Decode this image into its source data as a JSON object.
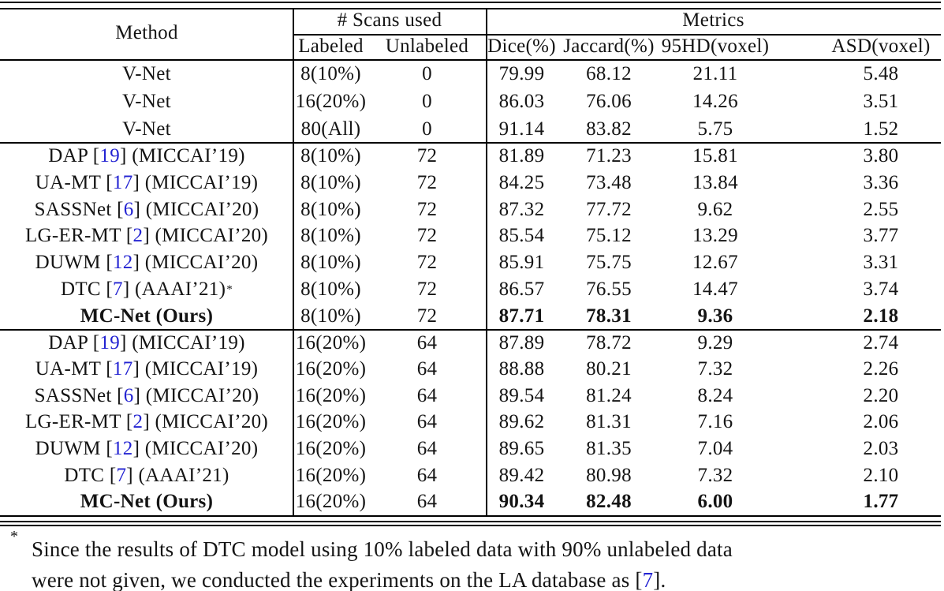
{
  "colors": {
    "citation_link": "#2323d2",
    "text": "#141414",
    "rule": "#000000",
    "background": "#ffffff"
  },
  "table": {
    "header": {
      "method": "Method",
      "scans_group": "# Scans used",
      "metrics_group": "Metrics",
      "labeled": "Labeled",
      "unlabeled": "Unlabeled",
      "dice": "Dice(%)",
      "jaccard": "Jaccard(%)",
      "hd95": "95HD(voxel)",
      "asd": "ASD(voxel)"
    },
    "groups": [
      {
        "rows": [
          {
            "m_pre": "V-Net",
            "m_cite": "",
            "m_post": "",
            "m_sup": "",
            "bold": false,
            "labeled": "8(10%)",
            "unlabeled": "0",
            "dice": "79.99",
            "jaccard": "68.12",
            "hd95": "21.11",
            "asd": "5.48"
          },
          {
            "m_pre": "V-Net",
            "m_cite": "",
            "m_post": "",
            "m_sup": "",
            "bold": false,
            "labeled": "16(20%)",
            "unlabeled": "0",
            "dice": "86.03",
            "jaccard": "76.06",
            "hd95": "14.26",
            "asd": "3.51"
          },
          {
            "m_pre": "V-Net",
            "m_cite": "",
            "m_post": "",
            "m_sup": "",
            "bold": false,
            "labeled": "80(All)",
            "unlabeled": "0",
            "dice": "91.14",
            "jaccard": "83.82",
            "hd95": "5.75",
            "asd": "1.52"
          }
        ]
      },
      {
        "rows": [
          {
            "m_pre": "DAP [",
            "m_cite": "19",
            "m_post": "] (MICCAI’19)",
            "m_sup": "",
            "bold": false,
            "labeled": "8(10%)",
            "unlabeled": "72",
            "dice": "81.89",
            "jaccard": "71.23",
            "hd95": "15.81",
            "asd": "3.80"
          },
          {
            "m_pre": "UA-MT [",
            "m_cite": "17",
            "m_post": "] (MICCAI’19)",
            "m_sup": "",
            "bold": false,
            "labeled": "8(10%)",
            "unlabeled": "72",
            "dice": "84.25",
            "jaccard": "73.48",
            "hd95": "13.84",
            "asd": "3.36"
          },
          {
            "m_pre": "SASSNet [",
            "m_cite": "6",
            "m_post": "] (MICCAI’20)",
            "m_sup": "",
            "bold": false,
            "labeled": "8(10%)",
            "unlabeled": "72",
            "dice": "87.32",
            "jaccard": "77.72",
            "hd95": "9.62",
            "asd": "2.55"
          },
          {
            "m_pre": "LG-ER-MT [",
            "m_cite": "2",
            "m_post": "] (MICCAI’20)",
            "m_sup": "",
            "bold": false,
            "labeled": "8(10%)",
            "unlabeled": "72",
            "dice": "85.54",
            "jaccard": "75.12",
            "hd95": "13.29",
            "asd": "3.77"
          },
          {
            "m_pre": "DUWM [",
            "m_cite": "12",
            "m_post": "] (MICCAI’20)",
            "m_sup": "",
            "bold": false,
            "labeled": "8(10%)",
            "unlabeled": "72",
            "dice": "85.91",
            "jaccard": "75.75",
            "hd95": "12.67",
            "asd": "3.31"
          },
          {
            "m_pre": "DTC [",
            "m_cite": "7",
            "m_post": "] (AAAI’21)",
            "m_sup": "*",
            "bold": false,
            "labeled": "8(10%)",
            "unlabeled": "72",
            "dice": "86.57",
            "jaccard": "76.55",
            "hd95": "14.47",
            "asd": "3.74"
          },
          {
            "m_pre": "MC-Net (Ours)",
            "m_cite": "",
            "m_post": "",
            "m_sup": "",
            "bold": true,
            "labeled": "8(10%)",
            "unlabeled": "72",
            "dice": "87.71",
            "jaccard": "78.31",
            "hd95": "9.36",
            "asd": "2.18"
          }
        ]
      },
      {
        "rows": [
          {
            "m_pre": "DAP [",
            "m_cite": "19",
            "m_post": "] (MICCAI’19)",
            "m_sup": "",
            "bold": false,
            "labeled": "16(20%)",
            "unlabeled": "64",
            "dice": "87.89",
            "jaccard": "78.72",
            "hd95": "9.29",
            "asd": "2.74"
          },
          {
            "m_pre": "UA-MT [",
            "m_cite": "17",
            "m_post": "] (MICCAI’19)",
            "m_sup": "",
            "bold": false,
            "labeled": "16(20%)",
            "unlabeled": "64",
            "dice": "88.88",
            "jaccard": "80.21",
            "hd95": "7.32",
            "asd": "2.26"
          },
          {
            "m_pre": "SASSNet [",
            "m_cite": "6",
            "m_post": "] (MICCAI’20)",
            "m_sup": "",
            "bold": false,
            "labeled": "16(20%)",
            "unlabeled": "64",
            "dice": "89.54",
            "jaccard": "81.24",
            "hd95": "8.24",
            "asd": "2.20"
          },
          {
            "m_pre": "LG-ER-MT [",
            "m_cite": "2",
            "m_post": "] (MICCAI’20)",
            "m_sup": "",
            "bold": false,
            "labeled": "16(20%)",
            "unlabeled": "64",
            "dice": "89.62",
            "jaccard": "81.31",
            "hd95": "7.16",
            "asd": "2.06"
          },
          {
            "m_pre": "DUWM [",
            "m_cite": "12",
            "m_post": "] (MICCAI’20)",
            "m_sup": "",
            "bold": false,
            "labeled": "16(20%)",
            "unlabeled": "64",
            "dice": "89.65",
            "jaccard": "81.35",
            "hd95": "7.04",
            "asd": "2.03"
          },
          {
            "m_pre": "DTC [",
            "m_cite": "7",
            "m_post": "] (AAAI’21)",
            "m_sup": "",
            "bold": false,
            "labeled": "16(20%)",
            "unlabeled": "64",
            "dice": "89.42",
            "jaccard": "80.98",
            "hd95": "7.32",
            "asd": "2.10"
          },
          {
            "m_pre": "MC-Net (Ours)",
            "m_cite": "",
            "m_post": "",
            "m_sup": "",
            "bold": true,
            "labeled": "16(20%)",
            "unlabeled": "64",
            "dice": "90.34",
            "jaccard": "82.48",
            "hd95": "6.00",
            "asd": "1.77"
          }
        ]
      }
    ]
  },
  "footnote": {
    "marker": "*",
    "line1": "Since the results of DTC model using 10% labeled data with 90% unlabeled data",
    "line2_pre": "were not given, we conducted the experiments on the LA database as [",
    "line2_cite": "7",
    "line2_post": "]."
  }
}
